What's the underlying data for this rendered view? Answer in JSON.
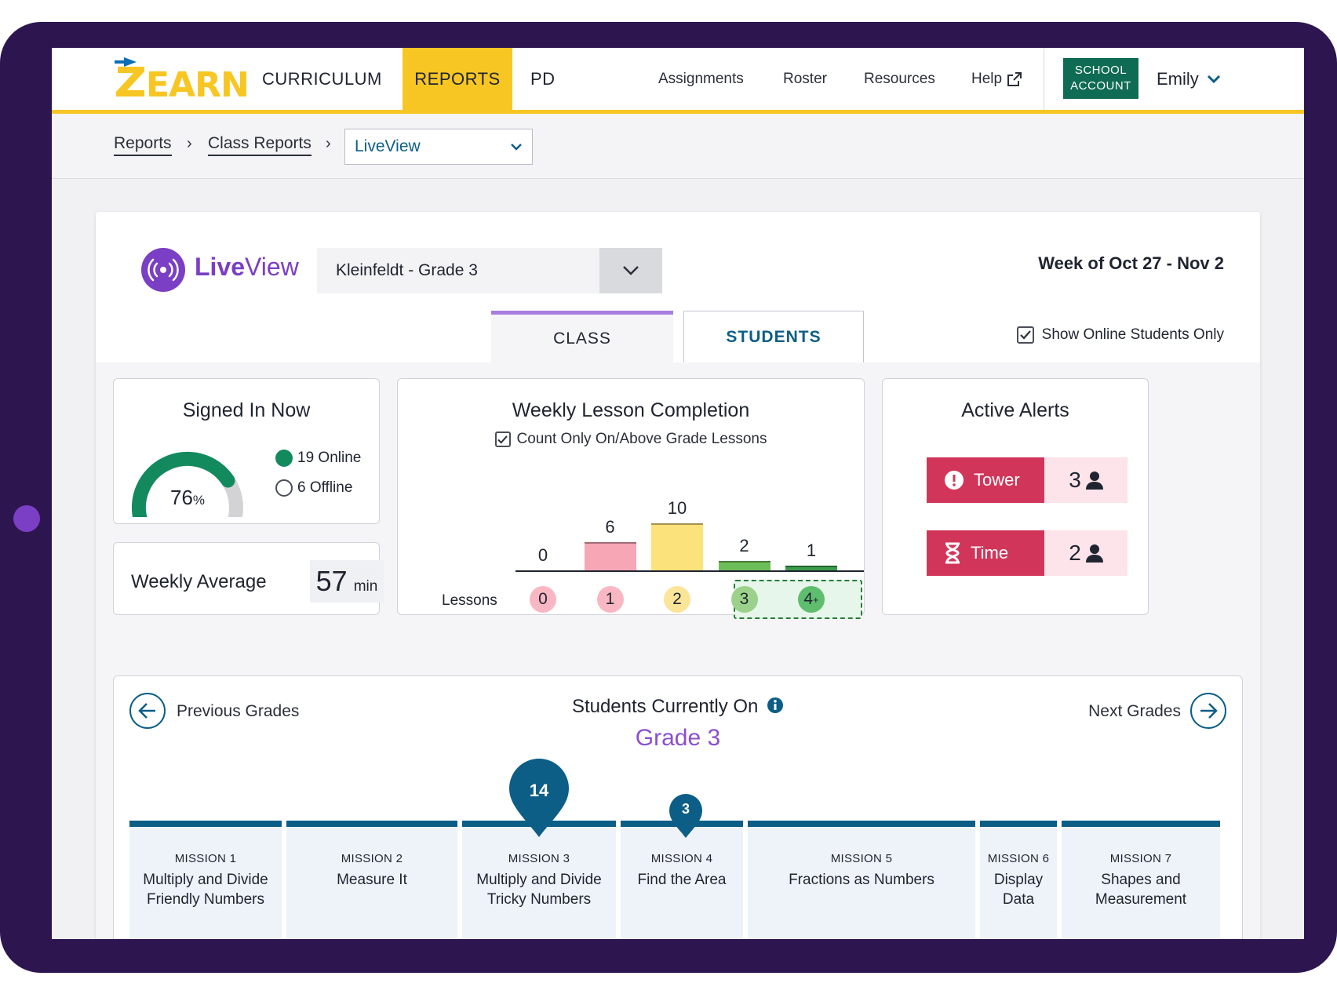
{
  "nav": {
    "logo_text": "ZEARN",
    "main": [
      "CURRICULUM",
      "REPORTS",
      "PD"
    ],
    "active": "REPORTS",
    "secondary": [
      "Assignments",
      "Roster",
      "Resources",
      "Help"
    ],
    "school_line1": "SCHOOL",
    "school_line2": "ACCOUNT",
    "user": "Emily"
  },
  "breadcrumb": {
    "items": [
      "Reports",
      "Class Reports"
    ],
    "select_value": "LiveView"
  },
  "header": {
    "title_bold": "Live",
    "title_rest": "View",
    "class_select": "Kleinfeldt - Grade 3",
    "week": "Week of Oct 27 - Nov 2",
    "tabs": [
      "CLASS",
      "STUDENTS"
    ],
    "active_tab": "CLASS",
    "online_only_label": "Show Online Students Only",
    "online_only_checked": true
  },
  "signed_in": {
    "title": "Signed In Now",
    "percent": "76",
    "percent_sign": "%",
    "online": "19 Online",
    "offline": "6 Offline",
    "online_color": "#138a5e",
    "percent_value": 0.76
  },
  "weekly_average": {
    "label": "Weekly Average",
    "value": "57",
    "unit": "min"
  },
  "weekly_lesson_completion": {
    "title": "Weekly Lesson Completion",
    "checkbox_label": "Count Only On/Above Grade Lessons",
    "lessons_label": "Lessons",
    "chart_data": {
      "type": "bar",
      "categories": [
        "0",
        "1",
        "2",
        "3",
        "4+"
      ],
      "values": [
        0,
        6,
        10,
        2,
        1
      ],
      "colors": [
        "#f6a6b5",
        "#f6a6b5",
        "#fbe27a",
        "#6dbd58",
        "#3a9b4a"
      ],
      "bubble_colors": [
        "#f9b7c3",
        "#f9b7c3",
        "#fbe598",
        "#9bd18a",
        "#5fbe6e"
      ]
    }
  },
  "alerts": {
    "title": "Active Alerts",
    "items": [
      {
        "label": "Tower",
        "count": "3"
      },
      {
        "label": "Time",
        "count": "2"
      }
    ],
    "color": "#d1365a"
  },
  "grades": {
    "prev_label": "Previous Grades",
    "next_label": "Next Grades",
    "title": "Students Currently On",
    "grade": "Grade 3",
    "missions": [
      {
        "name": "MISSION 1",
        "title": "Multiply and Divide Friendly Numbers"
      },
      {
        "name": "MISSION 2",
        "title": "Measure It"
      },
      {
        "name": "MISSION 3",
        "title": "Multiply and Divide Tricky Numbers",
        "students": "14"
      },
      {
        "name": "MISSION 4",
        "title": "Find the Area",
        "students": "3"
      },
      {
        "name": "MISSION 5",
        "title": "Fractions as Numbers"
      },
      {
        "name": "MISSION 6",
        "title": "Display Data"
      },
      {
        "name": "MISSION 7",
        "title": "Shapes and Measurement"
      }
    ]
  }
}
